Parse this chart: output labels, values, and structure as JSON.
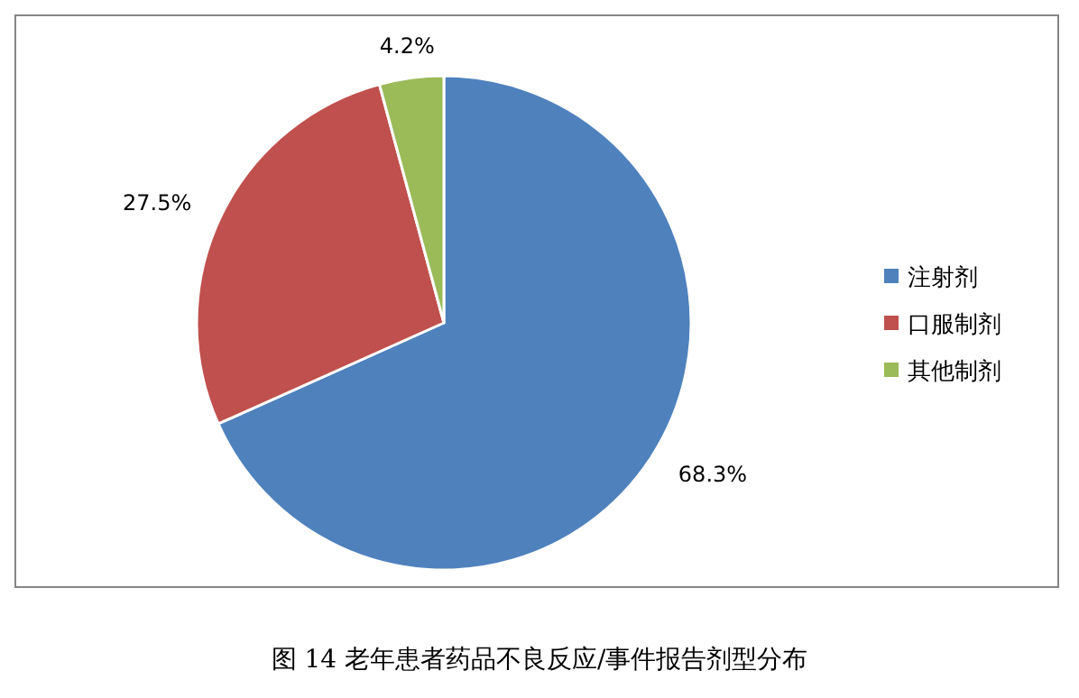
{
  "chart_data": {
    "type": "pie",
    "title": "图 14 老年患者药品不良反应/事件报告剂型分布",
    "categories": [
      "注射剂",
      "口服制剂",
      "其他制剂"
    ],
    "values": [
      68.3,
      27.5,
      4.2
    ],
    "value_labels": [
      "68.3%",
      "27.5%",
      "4.2%"
    ],
    "colors": [
      "#4f81bd",
      "#c0504d",
      "#9bbb59"
    ],
    "legend": "right"
  }
}
